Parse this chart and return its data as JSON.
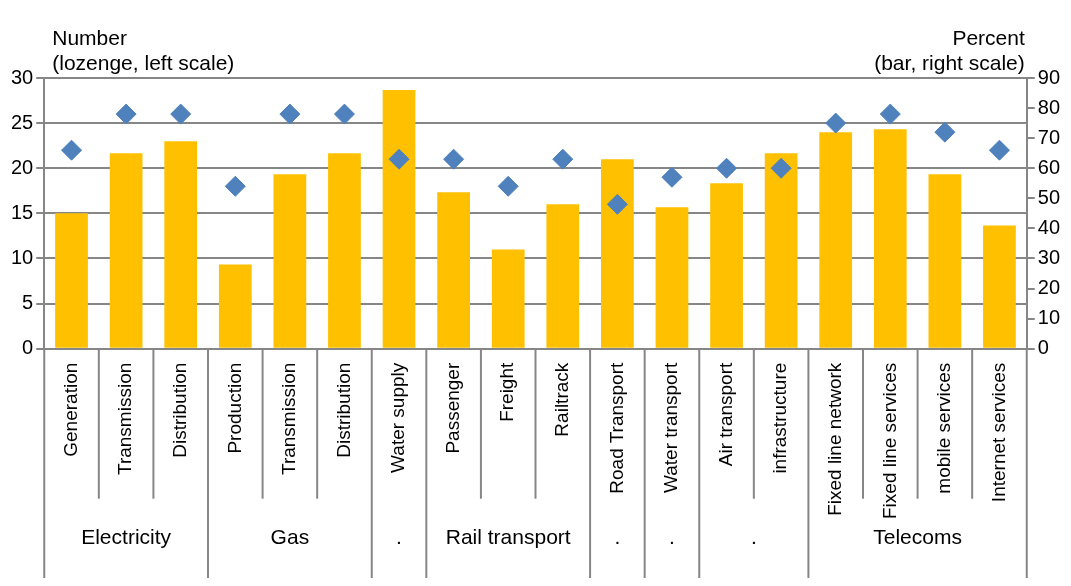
{
  "chart_data": {
    "type": "bar",
    "ylabel": "Number\n(lozenge, left scale)",
    "y2label": "Percent\n(bar, right scale)",
    "categories": [
      "Generation",
      "Transmission",
      "Distribution",
      "Production",
      "Transmission",
      "Distribution",
      "Water supply",
      "Passenger",
      "Freight",
      "Railtrack",
      "Road Transport",
      "Water transport",
      "Air transport",
      "infrastructure",
      "Fixed line network",
      "Fixed line services",
      "mobile services",
      "Internet services"
    ],
    "series": [
      {
        "axis": "y2",
        "color": "#ffc000",
        "values": [
          45,
          65,
          69,
          28,
          58,
          65,
          86,
          52,
          33,
          48,
          63,
          47,
          55,
          65,
          72,
          73,
          58,
          41
        ]
      },
      {
        "type": "scatter",
        "axis": "y",
        "color": "#4f81bd",
        "values": [
          22,
          26,
          26,
          18,
          26,
          26,
          21,
          21,
          18,
          21,
          16,
          19,
          20,
          20,
          25,
          26,
          24,
          22
        ]
      }
    ],
    "annotations": [
      "Electricity",
      "Gas",
      ".",
      "Rail transport",
      ".",
      ".",
      ".",
      "Telecoms"
    ],
    "ylim": [
      0,
      30
    ],
    "yticks": [
      0,
      5,
      10,
      15,
      20,
      25,
      30
    ],
    "y2lim": [
      0,
      90
    ],
    "y2ticks": [
      0,
      10,
      20,
      30,
      40,
      50,
      60,
      70,
      80,
      90
    ],
    "grid": "y",
    "legend": false,
    "marker": "diamond"
  }
}
